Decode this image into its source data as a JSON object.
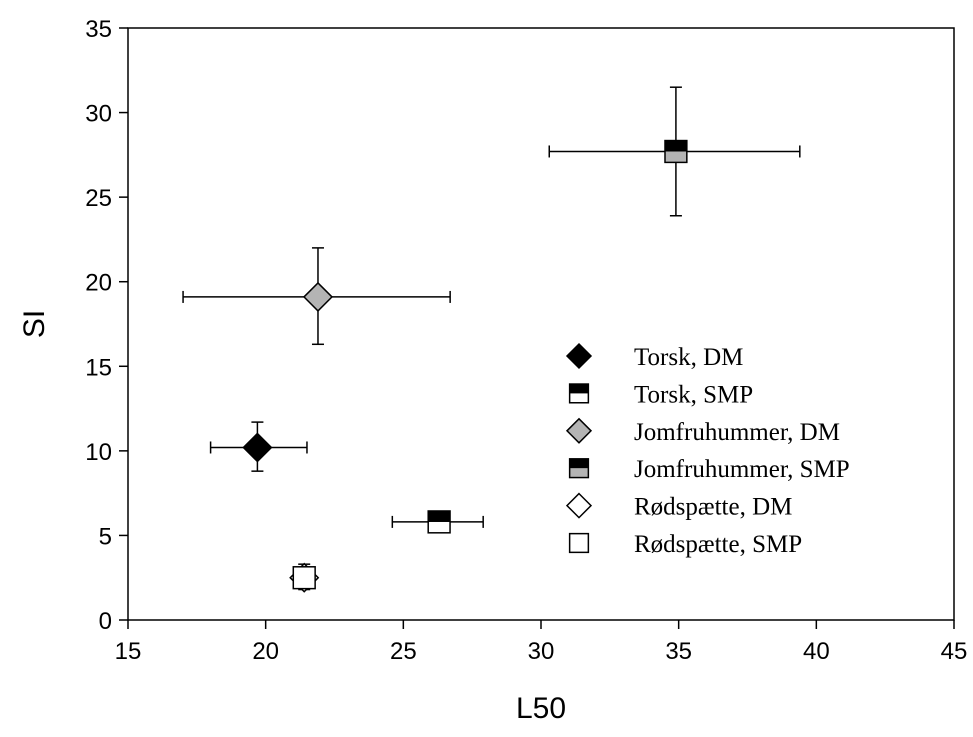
{
  "chart_data": {
    "type": "scatter",
    "xlabel": "L50",
    "ylabel": "SI",
    "xlim": [
      15,
      45
    ],
    "ylim": [
      0,
      35
    ],
    "xticks": [
      "15",
      "20",
      "25",
      "30",
      "35",
      "40",
      "45"
    ],
    "yticks": [
      "0",
      "5",
      "10",
      "15",
      "20",
      "25",
      "30",
      "35"
    ],
    "grid": false,
    "legend_position": "center-right",
    "colors": {
      "black": "#000000",
      "gray": "#b4b4b4",
      "white": "#ffffff"
    },
    "series": [
      {
        "name": "Torsk, DM",
        "marker": "diamond",
        "fill": "black",
        "x": 19.7,
        "y": 10.2,
        "xerr": [
          18.0,
          21.5
        ],
        "yerr": [
          8.8,
          11.7
        ]
      },
      {
        "name": "Torsk, SMP",
        "marker": "square-half",
        "fill_top": "black",
        "fill_bottom": "white",
        "x": 26.3,
        "y": 5.8,
        "xerr": [
          24.6,
          27.9
        ],
        "yerr": null
      },
      {
        "name": "Jomfruhummer, DM",
        "marker": "diamond",
        "fill": "gray",
        "x": 21.9,
        "y": 19.1,
        "xerr": [
          17.0,
          26.7
        ],
        "yerr": [
          16.3,
          22.0
        ]
      },
      {
        "name": "Jomfruhummer, SMP",
        "marker": "square-half",
        "fill_top": "black",
        "fill_bottom": "gray",
        "x": 34.9,
        "y": 27.7,
        "xerr": [
          30.3,
          39.4
        ],
        "yerr": [
          23.9,
          31.5
        ]
      },
      {
        "name": "Rødspætte, DM",
        "marker": "diamond",
        "fill": "white",
        "x": 21.4,
        "y": 2.5,
        "xerr": null,
        "yerr": [
          1.8,
          3.3
        ]
      },
      {
        "name": "Rødspætte, SMP",
        "marker": "square",
        "fill": "white",
        "x": 21.4,
        "y": 2.5,
        "xerr": null,
        "yerr": null
      }
    ]
  }
}
